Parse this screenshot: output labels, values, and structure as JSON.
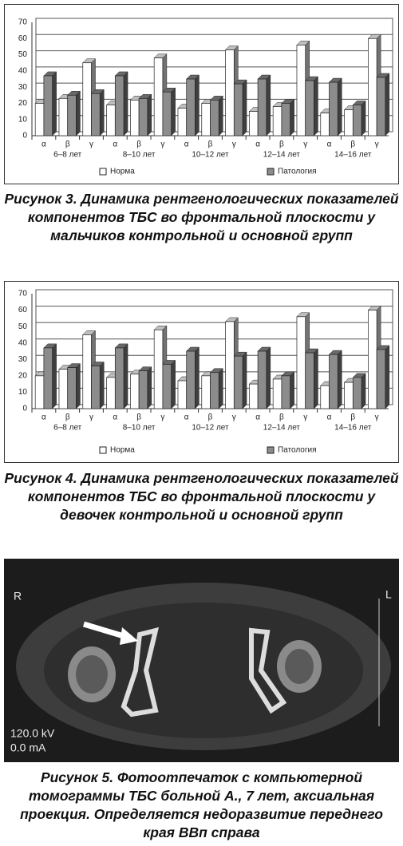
{
  "chart_data": [
    {
      "type": "bar3d",
      "caption": "Рисунок 3. Динамика рентгенологических показателей компонентов ТБС во фронтальной плоскости у мальчиков контрольной и основной групп",
      "categories": [
        "α",
        "β",
        "γ",
        "α",
        "β",
        "γ",
        "α",
        "β",
        "γ",
        "α",
        "β",
        "γ",
        "α",
        "β",
        "γ"
      ],
      "groups": [
        "6–8 лет",
        "8–10 лет",
        "10–12 лет",
        "12–14 лет",
        "14–16 лет"
      ],
      "series": [
        {
          "name": "Норма",
          "color": "#ffffff",
          "values": [
            20,
            23,
            45,
            19,
            22,
            48,
            17,
            20,
            53,
            15,
            18,
            56,
            14,
            16,
            60
          ]
        },
        {
          "name": "Патология",
          "color": "#8c8c8c",
          "values": [
            37,
            25,
            26,
            37,
            23,
            27,
            35,
            22,
            32,
            35,
            20,
            34,
            33,
            19,
            36
          ]
        }
      ],
      "ylim": [
        0,
        70
      ],
      "yticks": [
        0,
        10,
        20,
        30,
        40,
        50,
        60,
        70
      ],
      "grid": true
    },
    {
      "type": "bar3d",
      "caption": "Рисунок 4. Динамика рентгенологических показателей компонентов ТБС во фронтальной плоскости у девочек контрольной и основной групп",
      "categories": [
        "α",
        "β",
        "γ",
        "α",
        "β",
        "γ",
        "α",
        "β",
        "γ",
        "α",
        "β",
        "γ",
        "α",
        "β",
        "γ"
      ],
      "groups": [
        "6–8 лет",
        "8–10 лет",
        "10–12 лет",
        "12–14 лет",
        "14–16 лет"
      ],
      "series": [
        {
          "name": "Норма",
          "color": "#ffffff",
          "values": [
            20,
            24,
            45,
            19,
            21,
            48,
            17,
            20,
            53,
            15,
            18,
            56,
            14,
            16,
            60
          ]
        },
        {
          "name": "Патология",
          "color": "#8c8c8c",
          "values": [
            37,
            25,
            26,
            37,
            23,
            27,
            35,
            22,
            32,
            35,
            20,
            34,
            33,
            19,
            36
          ]
        }
      ],
      "ylim": [
        0,
        70
      ],
      "yticks": [
        0,
        10,
        20,
        30,
        40,
        50,
        60,
        70
      ],
      "grid": true
    }
  ],
  "figure5": {
    "labels": {
      "right": "R",
      "left": "L",
      "kv": "120.0 kV",
      "ma": "0.0 mA"
    },
    "caption": "Рисунок 5. Фотоотпечаток с компьютерной томограммы ТБС больной А., 7 лет, аксиальная проекция. Определяется недоразвитие переднего края ВВп справа"
  }
}
